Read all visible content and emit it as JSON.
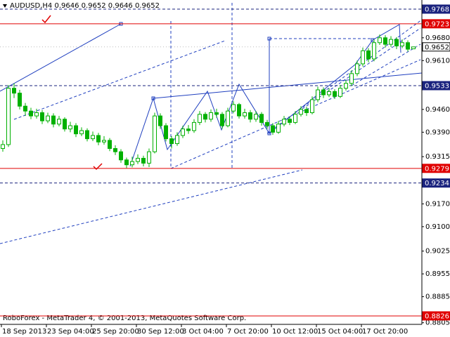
{
  "chart_data": {
    "type": "candlestick",
    "title": "AUDUSD,H4 0.9646 0.9652 0.9646 0.9652",
    "footer": "RoboForex - MetaTrader 4, © 2001-2013, MetaQuotes Software Corp.",
    "ylim": [
      0.88,
      0.9796
    ],
    "xlim": [
      0,
      74
    ],
    "up_color": "#00b000",
    "down_color": "#00b000",
    "yticks": [
      {
        "value": 0.968,
        "label": "0.9680"
      },
      {
        "value": 0.961,
        "label": "0.9610"
      },
      {
        "value": 0.946,
        "label": "0.9460"
      },
      {
        "value": 0.939,
        "label": "0.9390"
      },
      0.9315,
      {
        "value": 0.917,
        "label": "0.9170"
      },
      {
        "value": 0.91,
        "label": "0.9100"
      },
      0.9025,
      0.8955,
      0.8885,
      0.8805
    ],
    "xticks": [
      {
        "value": 0,
        "label": "18 Sep 2013"
      },
      {
        "value": 8,
        "label": "23 Sep 04:00"
      },
      {
        "value": 16,
        "label": "25 Sep 20:00"
      },
      {
        "value": 24,
        "label": "30 Sep 12:00"
      },
      {
        "value": 32,
        "label": "3 Oct 04:00"
      },
      {
        "value": 40,
        "label": "7 Oct 20:00"
      },
      {
        "value": 48,
        "label": "10 Oct 12:00"
      },
      {
        "value": 56,
        "label": "15 Oct 04:00"
      },
      {
        "value": 64,
        "label": "17 Oct 20:00"
      }
    ],
    "levels": [
      {
        "value": 0.9768,
        "color": "#1a237e",
        "style": "dashed"
      },
      {
        "value": 0.9723,
        "color": "#e00000",
        "style": "solid"
      },
      {
        "value": 0.9652,
        "color": "#000000",
        "style": "price"
      },
      {
        "value": 0.9533,
        "color": "#1a237e",
        "style": "dashed"
      },
      {
        "value": 0.9279,
        "color": "#e00000",
        "style": "solid"
      },
      {
        "value": 0.9234,
        "color": "#1a237e",
        "style": "dashed"
      },
      {
        "value": 0.8826,
        "color": "#e00000",
        "style": "solid"
      }
    ],
    "open": [
      0.934,
      0.9352,
      0.9525,
      0.951,
      0.947,
      0.9455,
      0.944,
      0.945,
      0.9425,
      0.944,
      0.9415,
      0.943,
      0.94,
      0.941,
      0.9385,
      0.9395,
      0.937,
      0.938,
      0.936,
      0.9365,
      0.934,
      0.933,
      0.9305,
      0.929,
      0.93,
      0.931,
      0.9295,
      0.933,
      0.944,
      0.941,
      0.937,
      0.9355,
      0.938,
      0.94,
      0.9395,
      0.942,
      0.9445,
      0.943,
      0.945,
      0.9445,
      0.941,
      0.9455,
      0.9475,
      0.944,
      0.945,
      0.943,
      0.9445,
      0.942,
      0.941,
      0.939,
      0.9415,
      0.943,
      0.942,
      0.9445,
      0.946,
      0.945,
      0.949,
      0.952,
      0.9505,
      0.9515,
      0.95,
      0.9525,
      0.954,
      0.957,
      0.96,
      0.964,
      0.9615,
      0.9665,
      0.968,
      0.966,
      0.9675,
      0.9655,
      0.9665,
      0.9646
    ],
    "high": [
      0.9365,
      0.9535,
      0.954,
      0.952,
      0.948,
      0.9465,
      0.9462,
      0.9458,
      0.945,
      0.9448,
      0.944,
      0.9436,
      0.9422,
      0.9418,
      0.9405,
      0.9402,
      0.9392,
      0.9388,
      0.9378,
      0.9372,
      0.935,
      0.9338,
      0.9312,
      0.9315,
      0.9322,
      0.9318,
      0.934,
      0.945,
      0.9448,
      0.9418,
      0.9378,
      0.939,
      0.941,
      0.9412,
      0.943,
      0.9455,
      0.9452,
      0.946,
      0.9462,
      0.9452,
      0.9465,
      0.9485,
      0.948,
      0.9462,
      0.9458,
      0.9455,
      0.9452,
      0.9428,
      0.9418,
      0.9425,
      0.944,
      0.9438,
      0.9455,
      0.947,
      0.9468,
      0.95,
      0.953,
      0.9528,
      0.9525,
      0.9522,
      0.9535,
      0.955,
      0.958,
      0.961,
      0.965,
      0.9648,
      0.9675,
      0.969,
      0.9688,
      0.9685,
      0.9682,
      0.9675,
      0.9672,
      0.9652
    ],
    "low": [
      0.933,
      0.9345,
      0.9495,
      0.946,
      0.944,
      0.943,
      0.9432,
      0.9415,
      0.9418,
      0.9405,
      0.9408,
      0.9392,
      0.939,
      0.9375,
      0.9378,
      0.9362,
      0.9363,
      0.935,
      0.9352,
      0.9332,
      0.932,
      0.9296,
      0.928,
      0.9282,
      0.9292,
      0.9285,
      0.9283,
      0.9325,
      0.94,
      0.9362,
      0.934,
      0.9348,
      0.9372,
      0.9385,
      0.9388,
      0.9412,
      0.942,
      0.9422,
      0.9435,
      0.94,
      0.9405,
      0.9448,
      0.9432,
      0.9432,
      0.942,
      0.9422,
      0.941,
      0.94,
      0.9382,
      0.9385,
      0.9408,
      0.9412,
      0.9415,
      0.9438,
      0.944,
      0.9445,
      0.9482,
      0.9495,
      0.9498,
      0.9492,
      0.9495,
      0.9518,
      0.9532,
      0.9562,
      0.9592,
      0.9605,
      0.9608,
      0.9658,
      0.965,
      0.9652,
      0.9645,
      0.9648,
      0.9638,
      0.9646
    ],
    "close": [
      0.9352,
      0.9525,
      0.951,
      0.947,
      0.9455,
      0.944,
      0.945,
      0.9425,
      0.944,
      0.9415,
      0.943,
      0.94,
      0.941,
      0.9385,
      0.9395,
      0.937,
      0.938,
      0.936,
      0.9365,
      0.934,
      0.933,
      0.9305,
      0.929,
      0.93,
      0.931,
      0.9295,
      0.933,
      0.944,
      0.941,
      0.937,
      0.9355,
      0.938,
      0.94,
      0.9395,
      0.942,
      0.9445,
      0.943,
      0.945,
      0.9445,
      0.941,
      0.9455,
      0.9475,
      0.944,
      0.945,
      0.943,
      0.9445,
      0.942,
      0.941,
      0.939,
      0.9415,
      0.943,
      0.942,
      0.9445,
      0.946,
      0.945,
      0.949,
      0.952,
      0.9505,
      0.9515,
      0.95,
      0.9525,
      0.954,
      0.957,
      0.96,
      0.964,
      0.9615,
      0.9665,
      0.968,
      0.966,
      0.9675,
      0.9655,
      0.9665,
      0.9645,
      0.9652
    ]
  }
}
